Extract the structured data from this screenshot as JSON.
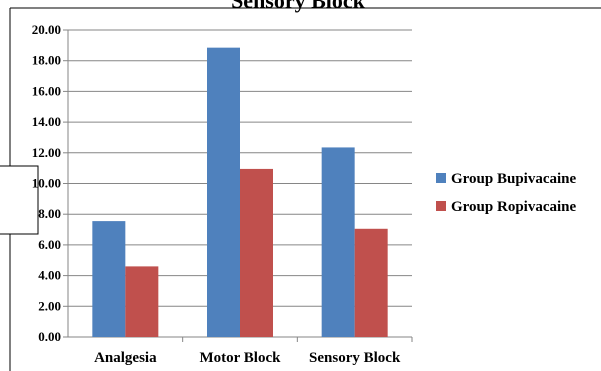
{
  "chart_data": {
    "type": "bar",
    "title": "Sensory Block",
    "categories": [
      "Analgesia",
      "Motor Block",
      "Sensory Block"
    ],
    "series": [
      {
        "name": "Group Bupivacaine",
        "values": [
          7.55,
          18.85,
          12.35
        ],
        "color": "#4f81bd"
      },
      {
        "name": "Group Ropivacaine",
        "values": [
          4.6,
          10.95,
          7.05
        ],
        "color": "#c0504d"
      }
    ],
    "y_ticks": [
      "0.00",
      "2.00",
      "4.00",
      "6.00",
      "8.00",
      "10.00",
      "12.00",
      "14.00",
      "16.00",
      "18.00",
      "20.00"
    ],
    "ylim": [
      0,
      20
    ],
    "grid": true,
    "legend_position": "right"
  }
}
